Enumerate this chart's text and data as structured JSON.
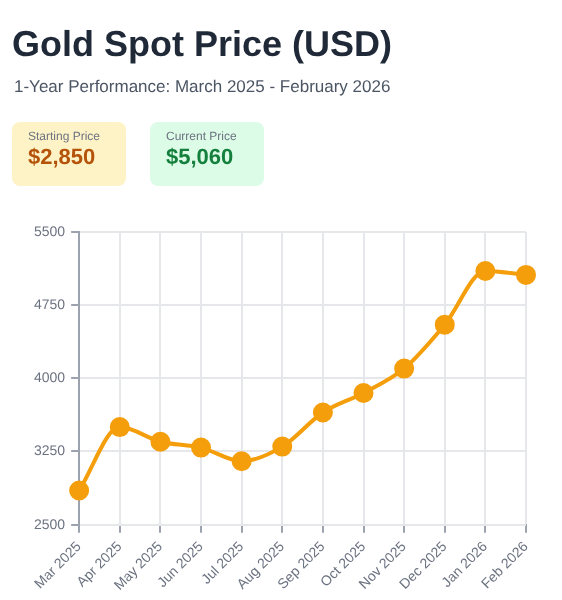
{
  "chart_data": {
    "type": "line",
    "title": "Gold Spot Price (USD)",
    "subtitle": "1-Year Performance: March 2025 - February 2026",
    "annotations": [
      "Starting Price",
      "$2,850",
      "Current Price",
      "$5,060"
    ],
    "categories": [
      "Mar 2025",
      "Apr 2025",
      "May 2025",
      "Jun 2025",
      "Jul 2025",
      "Aug 2025",
      "Sep 2025",
      "Oct 2025",
      "Nov 2025",
      "Dec 2025",
      "Jan 2026",
      "Feb 2026"
    ],
    "series": [
      {
        "color": "#f59e0b",
        "values": [
          2850,
          3500,
          3350,
          3290,
          3150,
          3300,
          3650,
          3850,
          4100,
          4550,
          5100,
          5060
        ]
      }
    ],
    "ylim": [
      2500,
      5500
    ],
    "yticks": [
      2500,
      3250,
      4000,
      4750,
      5500
    ],
    "grid": true,
    "marker": "circle",
    "line_style": "solid",
    "legend": false
  }
}
